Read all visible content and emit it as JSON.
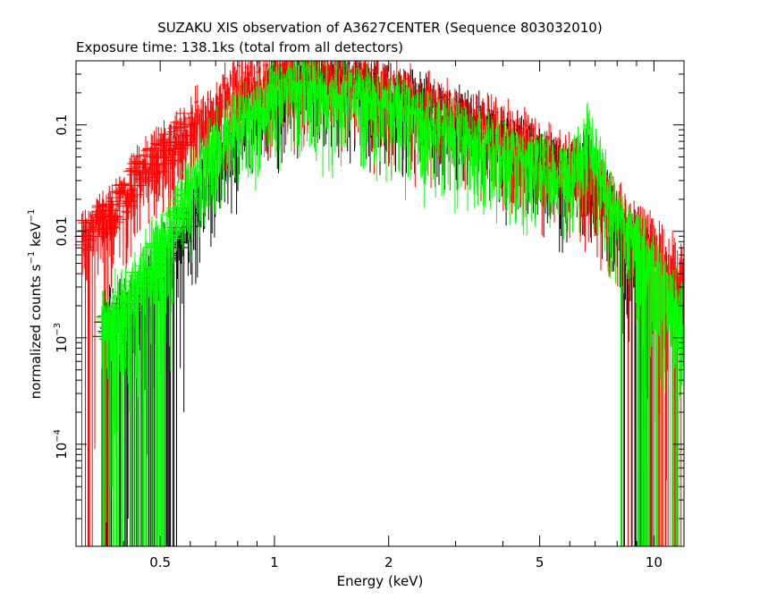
{
  "chart_data": {
    "type": "scatter",
    "title": "SUZAKU XIS observation of A3627CENTER (Sequence 803032010)",
    "subtitle": "Exposure time: 138.1ks (total from all detectors)",
    "xlabel": "Energy (keV)",
    "ylabel": {
      "prefix": "normalized counts s",
      "exp1": "−1",
      "mid": " keV",
      "exp2": "−1"
    },
    "x_scale": "log",
    "y_scale": "log",
    "xlim": [
      0.3,
      12
    ],
    "ylim": [
      1.1e-05,
      0.4
    ],
    "x_ticks": [
      {
        "value": 0.5,
        "label": "0.5"
      },
      {
        "value": 1,
        "label": "1"
      },
      {
        "value": 2,
        "label": "2"
      },
      {
        "value": 5,
        "label": "5"
      },
      {
        "value": 10,
        "label": "10"
      }
    ],
    "y_ticks": [
      {
        "value": 0.1,
        "label": "0.1"
      },
      {
        "value": 0.01,
        "label": "0.01"
      },
      {
        "value": 0.001,
        "base": "10",
        "exp": "−3"
      },
      {
        "value": 0.0001,
        "base": "10",
        "exp": "−4"
      }
    ],
    "grid": false,
    "legend": "none",
    "series": [
      {
        "color": "#000000",
        "x": [
          0.35,
          0.43,
          0.48,
          0.55,
          0.65,
          0.8,
          1.0,
          1.2,
          1.5,
          2.0,
          3.0,
          4.0,
          5.0,
          6.0,
          6.7,
          8.0,
          10.0
        ],
        "y": [
          0.0012,
          0.0018,
          0.003,
          0.008,
          0.03,
          0.1,
          0.2,
          0.3,
          0.28,
          0.2,
          0.12,
          0.08,
          0.05,
          0.035,
          0.05,
          0.012,
          0.003
        ]
      },
      {
        "color": "#ff0000",
        "x": [
          0.31,
          0.35,
          0.4,
          0.45,
          0.5,
          0.6,
          0.7,
          0.8,
          1.0,
          1.2,
          1.5,
          2.0,
          3.0,
          4.0,
          5.0,
          6.0,
          7.0,
          8.0,
          10.0,
          12.0
        ],
        "y": [
          0.009,
          0.012,
          0.02,
          0.04,
          0.05,
          0.1,
          0.15,
          0.25,
          0.3,
          0.35,
          0.3,
          0.22,
          0.13,
          0.09,
          0.06,
          0.04,
          0.03,
          0.015,
          0.006,
          0.003
        ]
      },
      {
        "color": "#00ff00",
        "x": [
          0.35,
          0.4,
          0.45,
          0.5,
          0.6,
          0.7,
          0.8,
          1.0,
          1.2,
          1.5,
          2.0,
          3.0,
          4.0,
          5.0,
          6.0,
          6.7,
          8.0,
          10.0,
          12.0
        ],
        "y": [
          0.0011,
          0.002,
          0.004,
          0.007,
          0.03,
          0.07,
          0.12,
          0.2,
          0.25,
          0.22,
          0.15,
          0.09,
          0.06,
          0.045,
          0.035,
          0.08,
          0.015,
          0.004,
          0.0015
        ]
      }
    ]
  }
}
